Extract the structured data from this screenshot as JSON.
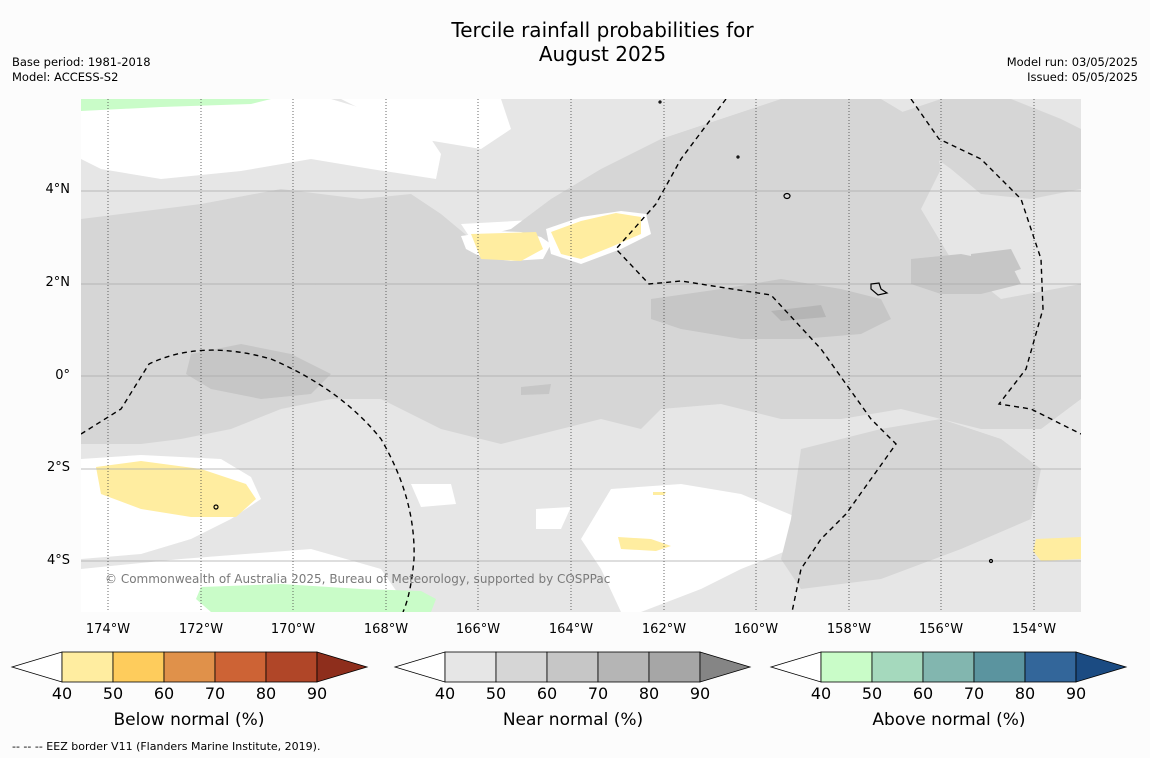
{
  "title_line1": "Tercile rainfall probabilities for",
  "title_line2": "August 2025",
  "meta_left": {
    "base_period": "Base period: 1981-2018",
    "model": "Model: ACCESS-S2"
  },
  "meta_right": {
    "model_run": "Model run: 03/05/2025",
    "issued": "Issued: 05/05/2025"
  },
  "copyright": "© Commonwealth of Australia 2025, Bureau of Meteorology, supported by COSPPac",
  "y_ticks": [
    "4°N",
    "2°N",
    "0°",
    "2°S",
    "4°S"
  ],
  "x_ticks": [
    "174°W",
    "172°W",
    "170°W",
    "168°W",
    "166°W",
    "164°W",
    "162°W",
    "160°W",
    "158°W",
    "156°W",
    "154°W"
  ],
  "colorbars": [
    {
      "label": "Below normal (%)",
      "ticks": [
        "40",
        "50",
        "60",
        "70",
        "80",
        "90"
      ],
      "colors": [
        "#ffffff",
        "#ffeda0",
        "#fecc5c",
        "#e0914a",
        "#cd6335",
        "#b04628",
        "#8e2e1c"
      ]
    },
    {
      "label": "Near normal (%)",
      "ticks": [
        "40",
        "50",
        "60",
        "70",
        "80",
        "90"
      ],
      "colors": [
        "#ffffff",
        "#e6e6e6",
        "#d6d6d6",
        "#c6c6c6",
        "#b5b5b5",
        "#a6a6a6",
        "#858585"
      ]
    },
    {
      "label": "Above normal (%)",
      "ticks": [
        "40",
        "50",
        "60",
        "70",
        "80",
        "90"
      ],
      "colors": [
        "#ffffff",
        "#c9fcc8",
        "#a5d9bd",
        "#82b6af",
        "#5b949f",
        "#33669a",
        "#1b4b82"
      ]
    }
  ],
  "footnote": "-- -- -- EEZ border V11 (Flanders Marine Institute, 2019)."
}
